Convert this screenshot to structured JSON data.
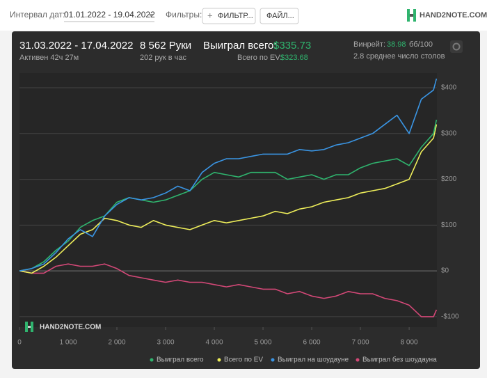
{
  "toolbar": {
    "date_label": "Интервал дат:",
    "date_range": "01.01.2022 - 19.04.2022",
    "filters_label": "Фильтры:",
    "filter_button": "ФИЛЬТР...",
    "file_button": "ФАЙЛ...",
    "logo": "HAND2NOTE.COM"
  },
  "summary": {
    "period": "31.03.2022 - 17.04.2022",
    "active": "Активен 42ч 27м",
    "hands": "8 562 Руки",
    "hands_per_hour": "202 рук в час",
    "won_label": "Выиграл всего:",
    "won_value": "$335.73",
    "ev_label": "Всего по EV:",
    "ev_value": "$323.68",
    "winrate_label": "Винрейт:",
    "winrate_value": "38.98",
    "winrate_unit": "бб/100",
    "tables": "2.8 среднее число столов"
  },
  "chart_data": {
    "type": "line",
    "watermark": "HAND2NOTE.COM",
    "x": [
      0,
      250,
      500,
      750,
      1000,
      1250,
      1500,
      1750,
      2000,
      2250,
      2500,
      2750,
      3000,
      3250,
      3500,
      3750,
      4000,
      4250,
      4500,
      4750,
      5000,
      5250,
      5500,
      5750,
      6000,
      6250,
      6500,
      6750,
      7000,
      7250,
      7500,
      7750,
      8000,
      8250,
      8500,
      8562
    ],
    "series": [
      {
        "name": "Выиграл всего",
        "color": "#2fb46e",
        "values": [
          0,
          5,
          20,
          45,
          65,
          95,
          110,
          120,
          150,
          160,
          155,
          150,
          155,
          165,
          175,
          200,
          215,
          210,
          205,
          215,
          215,
          215,
          200,
          205,
          210,
          200,
          210,
          210,
          225,
          235,
          240,
          245,
          230,
          270,
          300,
          330
        ]
      },
      {
        "name": "Всего по EV",
        "color": "#eeee5a",
        "values": [
          0,
          -5,
          10,
          30,
          55,
          80,
          90,
          115,
          110,
          100,
          95,
          110,
          100,
          95,
          90,
          100,
          110,
          105,
          110,
          115,
          120,
          130,
          125,
          135,
          140,
          150,
          155,
          160,
          170,
          175,
          180,
          190,
          200,
          260,
          290,
          320
        ]
      },
      {
        "name": "Выиграл на шоудауне",
        "color": "#3a95e4",
        "values": [
          0,
          5,
          15,
          40,
          70,
          90,
          75,
          120,
          145,
          160,
          155,
          160,
          170,
          185,
          175,
          215,
          235,
          245,
          245,
          250,
          255,
          255,
          255,
          265,
          262,
          265,
          275,
          280,
          290,
          300,
          320,
          340,
          300,
          375,
          395,
          420
        ]
      },
      {
        "name": "Выиграл без шоудауна",
        "color": "#d34877",
        "values": [
          0,
          -5,
          -5,
          10,
          15,
          10,
          10,
          15,
          5,
          -10,
          -15,
          -20,
          -25,
          -20,
          -25,
          -25,
          -30,
          -35,
          -30,
          -35,
          -40,
          -40,
          -50,
          -45,
          -55,
          -60,
          -55,
          -45,
          -50,
          -50,
          -60,
          -65,
          -75,
          -100,
          -100,
          -85
        ]
      }
    ],
    "xlim": [
      0,
      8570
    ],
    "ylim": [
      -123,
      432
    ],
    "xticks": [
      0,
      {
        "value": 1000,
        "label": "1 000"
      },
      {
        "value": 2000,
        "label": "2 000"
      },
      {
        "value": 3000,
        "label": "3 000"
      },
      {
        "value": 4000,
        "label": "4 000"
      },
      {
        "value": 5000,
        "label": "5 000"
      },
      {
        "value": 6000,
        "label": "6 000"
      },
      {
        "value": 7000,
        "label": "7 000"
      },
      {
        "value": 8000,
        "label": "8 000"
      }
    ],
    "yticks": [
      {
        "value": -100,
        "label": "-$100"
      },
      {
        "value": 0,
        "label": "$0"
      },
      {
        "value": 100,
        "label": "$100"
      },
      {
        "value": 200,
        "label": "$200"
      },
      {
        "value": 300,
        "label": "$300"
      },
      {
        "value": 400,
        "label": "$400"
      }
    ],
    "grid": true
  }
}
